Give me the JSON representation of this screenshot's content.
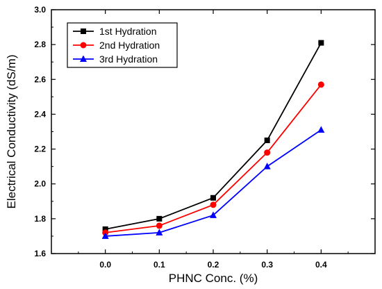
{
  "chart_data": {
    "type": "line",
    "title": "",
    "xlabel": "PHNC Conc. (%)",
    "ylabel": "Electrical Conductivity (dS/m)",
    "x": [
      0.0,
      0.1,
      0.2,
      0.3,
      0.4
    ],
    "x_tick_labels": [
      "0.0",
      "0.1",
      "0.2",
      "0.3",
      "0.4"
    ],
    "xlim": [
      -0.1,
      0.5
    ],
    "ylim": [
      1.6,
      3.0
    ],
    "y_ticks": [
      1.6,
      1.8,
      2.0,
      2.2,
      2.4,
      2.6,
      2.8,
      3.0
    ],
    "y_tick_labels": [
      "1.6",
      "1.8",
      "2.0",
      "2.2",
      "2.4",
      "2.6",
      "2.8",
      "3.0"
    ],
    "grid": false,
    "legend_position": "top-left",
    "series": [
      {
        "name": "1st Hydration",
        "color": "#000000",
        "marker": "square",
        "values": [
          1.74,
          1.8,
          1.92,
          2.25,
          2.81
        ]
      },
      {
        "name": "2nd Hydration",
        "color": "#ff0000",
        "marker": "circle",
        "values": [
          1.72,
          1.76,
          1.88,
          2.18,
          2.57
        ]
      },
      {
        "name": "3rd Hydration",
        "color": "#0000ff",
        "marker": "triangle",
        "values": [
          1.7,
          1.72,
          1.82,
          2.1,
          2.31
        ]
      }
    ]
  }
}
